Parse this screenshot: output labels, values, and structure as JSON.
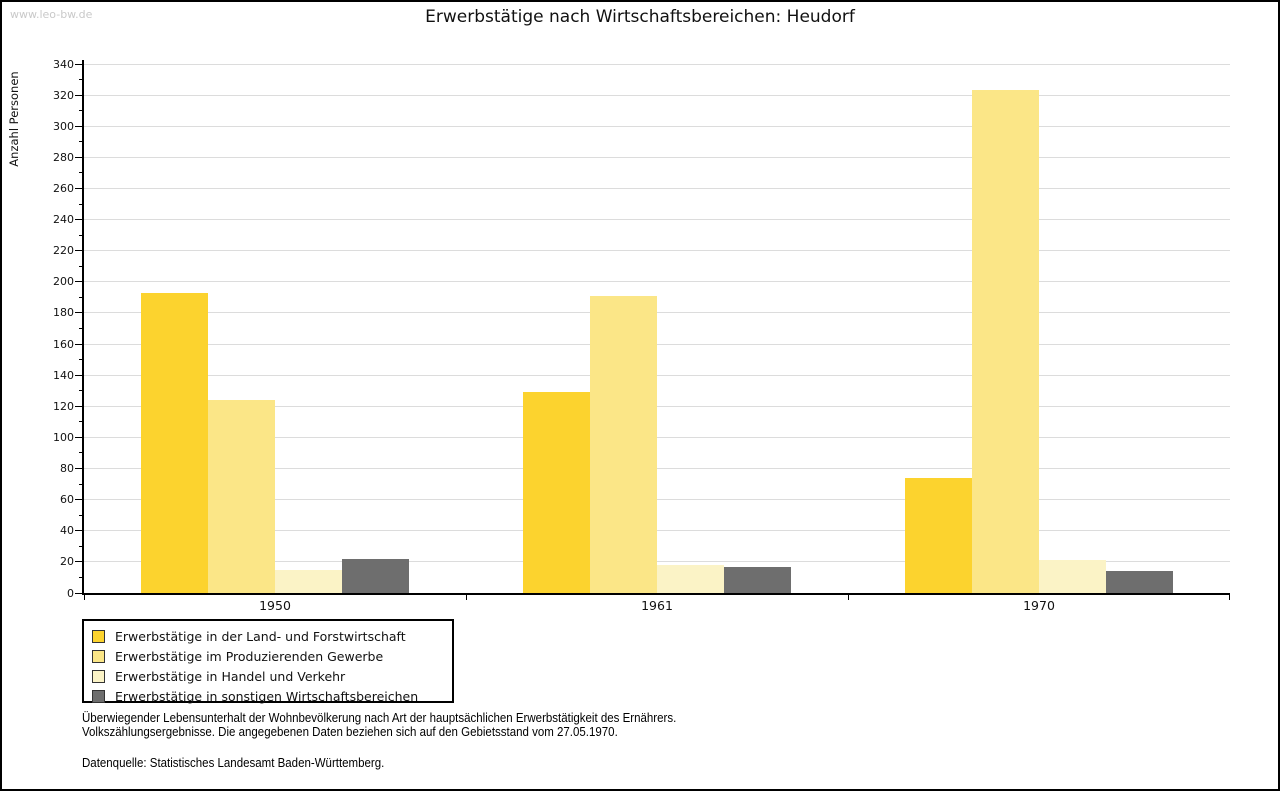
{
  "page": {
    "watermark": "www.leo-bw.de",
    "title": "Erwerbstätige nach Wirtschaftsbereichen: Heudorf"
  },
  "chart_data": {
    "type": "bar",
    "title": "Erwerbstätige nach Wirtschaftsbereichen: Heudorf",
    "xlabel": "",
    "ylabel": "Anzahl Personen",
    "ylim": [
      0,
      340
    ],
    "ytick_step": 20,
    "ytick_minor_step": 10,
    "grid": true,
    "legend_position": "bottom-left",
    "categories": [
      "1950",
      "1961",
      "1970"
    ],
    "series": [
      {
        "name": "Erwerbstätige in der Land- und Forstwirtschaft",
        "color": "#FCD32E",
        "values": [
          193,
          129,
          74
        ]
      },
      {
        "name": "Erwerbstätige im Produzierenden Gewerbe",
        "color": "#FBE687",
        "values": [
          124,
          191,
          323
        ]
      },
      {
        "name": "Erwerbstätige in Handel und Verkehr",
        "color": "#FBF3C6",
        "values": [
          15,
          18,
          21
        ]
      },
      {
        "name": "Erwerbstätige in sonstigen Wirtschaftsbereichen",
        "color": "#6E6E6E",
        "values": [
          22,
          17,
          14
        ]
      }
    ],
    "colors": {
      "gridline": "#DCDCDC",
      "axis": "#000000",
      "watermark": "#C9C9C9"
    }
  },
  "footnotes": {
    "line1": "Überwiegender Lebensunterhalt der Wohnbevölkerung nach Art der hauptsächlichen Erwerbstätigkeit des Ernährers.",
    "line2": "Volkszählungsergebnisse. Die angegebenen Daten beziehen sich auf den Gebietsstand vom 27.05.1970.",
    "source": "Datenquelle: Statistisches Landesamt Baden-Württemberg."
  }
}
